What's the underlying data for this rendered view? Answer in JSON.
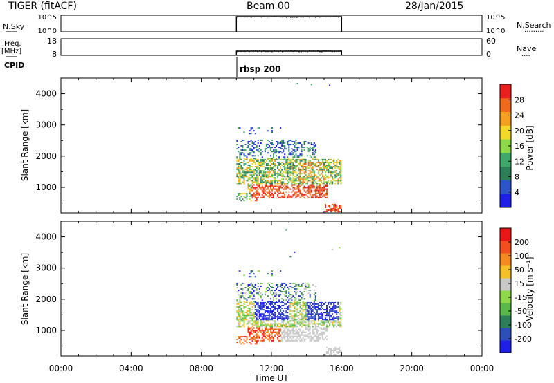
{
  "header": {
    "station_title": "TIGER (fitACF)",
    "beam_title": "Beam 00",
    "date": "28/Jan/2015"
  },
  "side_labels": {
    "nsky": "N.Sky",
    "freq_top": "Freq.",
    "freq_unit": "[MHz]",
    "cpid": "CPID",
    "nsearch": "N.Search",
    "nave": "Nave",
    "dots_nsearch": "·········",
    "dots_nave": "····"
  },
  "strip_ticks": {
    "noise_top_left": "10^5",
    "noise_bottom_left": "10^0",
    "noise_top_right": "10^5",
    "noise_bottom_right": "10^0",
    "freq_top": "18",
    "freq_bottom": "8",
    "nave_top": "60",
    "nave_bottom": "0"
  },
  "cpid_label": "rbsp 200",
  "x_axis": {
    "label": "Time UT",
    "ticks": [
      "00:00",
      "04:00",
      "08:00",
      "12:00",
      "16:00",
      "20:00",
      "00:00"
    ]
  },
  "power_panel": {
    "ylabel": "Slant Range [km]",
    "yticks": [
      "4000",
      "3000",
      "2000",
      "1000"
    ],
    "colorbar_label": "Power [dB]",
    "colorbar_ticks": [
      "28",
      "24",
      "20",
      "16",
      "12",
      "8",
      "4"
    ],
    "colors": [
      "#1f1fe6",
      "#2e55c8",
      "#2e7e5a",
      "#3fa86a",
      "#8ed84a",
      "#f2d82a",
      "#f4a022",
      "#f06a1e",
      "#e82020"
    ]
  },
  "velocity_panel": {
    "ylabel": "Slant Range [km]",
    "yticks": [
      "4000",
      "3000",
      "2000",
      "1000"
    ],
    "colorbar_label": "Velocity [m s⁻¹]",
    "colorbar_ticks": [
      "200",
      "100",
      "50",
      "15",
      "-15",
      "-50",
      "-100",
      "-200"
    ],
    "colors": [
      "#1f1fe6",
      "#2e4fb8",
      "#2e7e5a",
      "#5cb84a",
      "#8ed84a",
      "#c8c8c8",
      "#f4c02a",
      "#f48a22",
      "#f05020",
      "#e81818"
    ]
  },
  "chart_data": {
    "type": "heatmap",
    "x": {
      "label": "Time UT",
      "unit": "hours",
      "range": [
        0,
        24
      ]
    },
    "y": {
      "label": "Slant Range [km]",
      "unit": "km",
      "range": [
        180,
        4500
      ]
    },
    "data_time_range": [
      10.0,
      16.0
    ],
    "panels": [
      "Power [dB]",
      "Velocity [m s⁻¹]"
    ]
  }
}
